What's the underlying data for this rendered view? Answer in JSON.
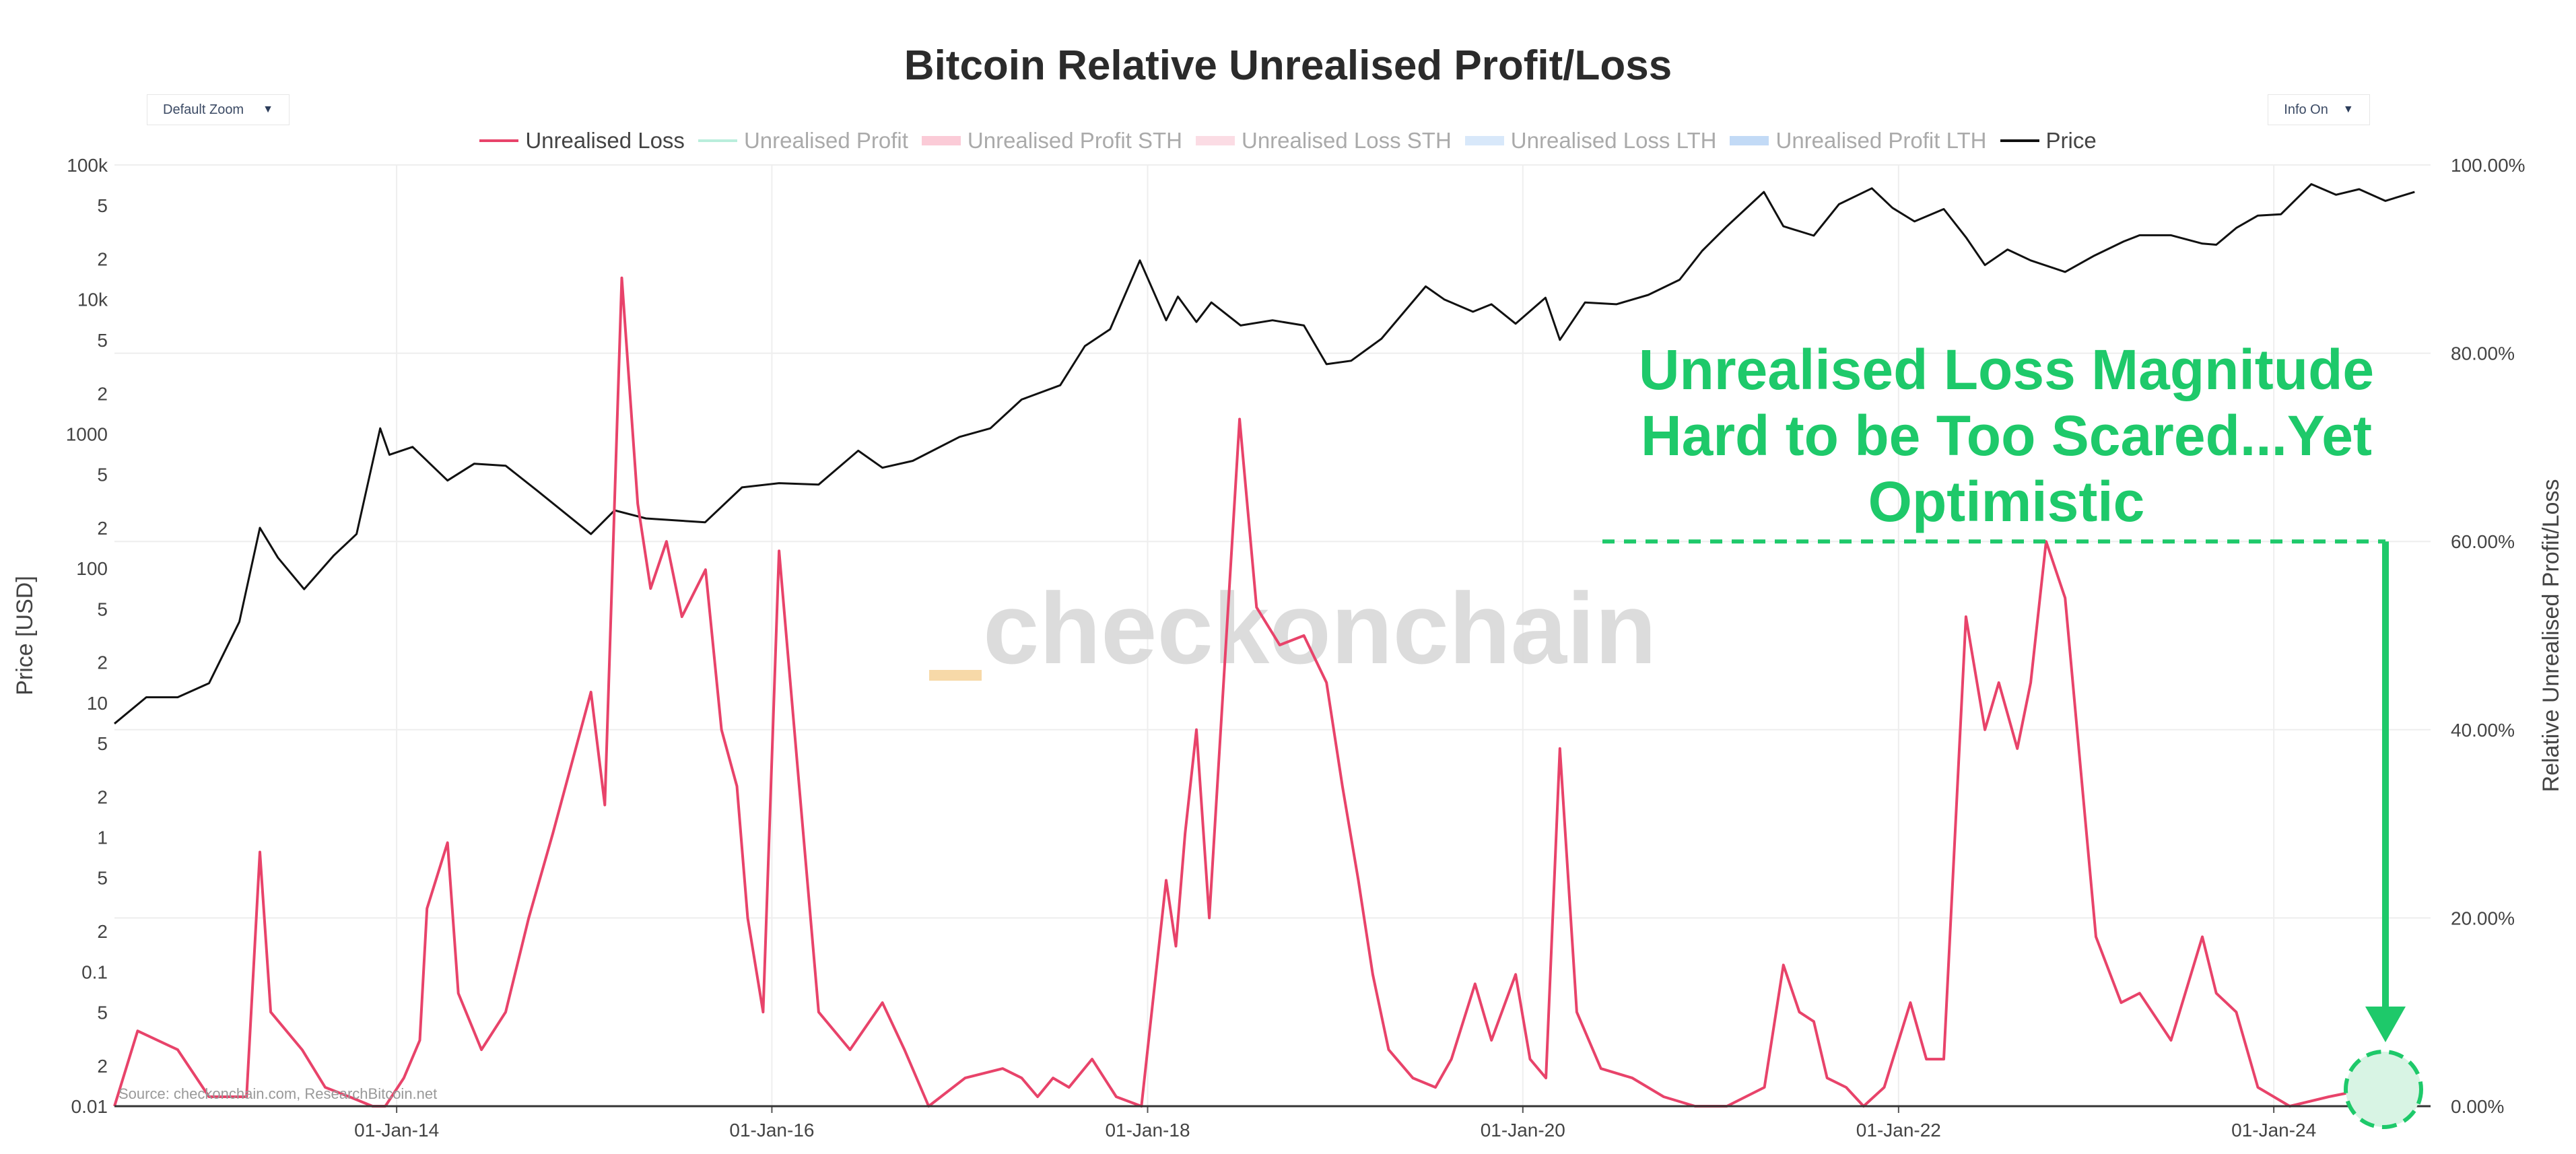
{
  "chart_data": {
    "type": "line",
    "title": "Bitcoin Relative Unrealised Profit/Loss",
    "ylabel_left": "Price [USD]",
    "ylabel_right": "Relative Unrealised Profit/Loss",
    "yscale_left": "log",
    "ylim_left": [
      0.01,
      100000
    ],
    "ylim_right": [
      0,
      1
    ],
    "left_ticks": [
      "100k",
      "5",
      "2",
      "10k",
      "5",
      "2",
      "1000",
      "5",
      "2",
      "100",
      "5",
      "2",
      "10",
      "5",
      "2",
      "1",
      "5",
      "2",
      "0.1",
      "5",
      "2",
      "0.01"
    ],
    "right_ticks": [
      "100.00%",
      "80.00%",
      "60.00%",
      "40.00%",
      "20.00%",
      "0.00%"
    ],
    "x_ticks": [
      "01-Jan-14",
      "01-Jan-16",
      "01-Jan-18",
      "01-Jan-20",
      "01-Jan-22",
      "01-Jan-24"
    ],
    "grid": true,
    "legend_position": "top-center",
    "series": [
      {
        "name": "Unrealised Loss",
        "axis": "right",
        "color": "#e8436a",
        "visible": true,
        "x": [
          "2012-07-01",
          "2012-08-15",
          "2012-11-01",
          "2013-01-01",
          "2013-03-15",
          "2013-04-10",
          "2013-05-01",
          "2013-07-01",
          "2013-08-15",
          "2013-10-01",
          "2013-11-15",
          "2013-12-10",
          "2014-01-15",
          "2014-02-15",
          "2014-03-01",
          "2014-04-10",
          "2014-05-01",
          "2014-06-15",
          "2014-08-01",
          "2014-09-15",
          "2014-11-01",
          "2015-01-14",
          "2015-02-10",
          "2015-03-15",
          "2015-04-15",
          "2015-05-10",
          "2015-06-10",
          "2015-07-10",
          "2015-08-25",
          "2015-09-25",
          "2015-10-25",
          "2015-11-15",
          "2015-12-15",
          "2016-01-15",
          "2016-02-20",
          "2016-04-01",
          "2016-06-01",
          "2016-08-03",
          "2016-09-15",
          "2016-11-01",
          "2017-01-11",
          "2017-03-25",
          "2017-05-01",
          "2017-06-01",
          "2017-07-01",
          "2017-08-01",
          "2017-09-15",
          "2017-11-01",
          "2017-12-20",
          "2018-02-06",
          "2018-02-25",
          "2018-03-15",
          "2018-04-06",
          "2018-05-01",
          "2018-06-29",
          "2018-08-01",
          "2018-09-15",
          "2018-11-01",
          "2018-12-15",
          "2019-01-15",
          "2019-02-15",
          "2019-03-15",
          "2019-04-15",
          "2019-06-01",
          "2019-07-15",
          "2019-08-15",
          "2019-09-30",
          "2019-11-01",
          "2019-12-18",
          "2020-01-15",
          "2020-02-15",
          "2020-03-13",
          "2020-04-15",
          "2020-06-01",
          "2020-08-01",
          "2020-10-01",
          "2020-12-01",
          "2021-02-01",
          "2021-04-15",
          "2021-05-22",
          "2021-06-22",
          "2021-07-20",
          "2021-08-15",
          "2021-09-21",
          "2021-10-25",
          "2021-12-04",
          "2022-01-24",
          "2022-02-24",
          "2022-03-30",
          "2022-05-12",
          "2022-06-18",
          "2022-07-15",
          "2022-08-20",
          "2022-09-15",
          "2022-10-15",
          "2022-11-21",
          "2022-12-31",
          "2023-01-20",
          "2023-03-10",
          "2023-04-15",
          "2023-06-15",
          "2023-08-15",
          "2023-09-11",
          "2023-10-20",
          "2023-12-01",
          "2024-02-01",
          "2024-04-17",
          "2024-06-01",
          "2024-07-05",
          "2024-08-05",
          "2024-09-06",
          "2024-10-01"
        ],
        "y": [
          0.0,
          0.08,
          0.06,
          0.01,
          0.01,
          0.27,
          0.1,
          0.06,
          0.02,
          0.01,
          0.0,
          0.0,
          0.03,
          0.07,
          0.21,
          0.28,
          0.12,
          0.06,
          0.1,
          0.2,
          0.29,
          0.44,
          0.32,
          0.88,
          0.64,
          0.55,
          0.6,
          0.52,
          0.57,
          0.4,
          0.34,
          0.2,
          0.1,
          0.59,
          0.36,
          0.1,
          0.06,
          0.11,
          0.06,
          0.0,
          0.03,
          0.04,
          0.03,
          0.01,
          0.03,
          0.02,
          0.05,
          0.01,
          0.0,
          0.24,
          0.17,
          0.29,
          0.4,
          0.2,
          0.73,
          0.53,
          0.49,
          0.5,
          0.45,
          0.34,
          0.24,
          0.14,
          0.06,
          0.03,
          0.02,
          0.05,
          0.13,
          0.07,
          0.14,
          0.05,
          0.03,
          0.38,
          0.1,
          0.04,
          0.03,
          0.01,
          0.0,
          0.0,
          0.02,
          0.15,
          0.1,
          0.09,
          0.03,
          0.02,
          0.0,
          0.02,
          0.11,
          0.05,
          0.05,
          0.52,
          0.4,
          0.45,
          0.38,
          0.45,
          0.6,
          0.54,
          0.3,
          0.18,
          0.11,
          0.12,
          0.07,
          0.18,
          0.12,
          0.1,
          0.02,
          0.0,
          0.01,
          0.015,
          0.0,
          0.02,
          0.01,
          0.0
        ]
      },
      {
        "name": "Unrealised Profit",
        "axis": "right",
        "color": "#7fe0bf",
        "visible": false
      },
      {
        "name": "Unrealised Profit STH",
        "axis": "right",
        "color": "#f7a1b7",
        "visible": false
      },
      {
        "name": "Unrealised Loss STH",
        "axis": "right",
        "color": "#f8bfcd",
        "visible": false
      },
      {
        "name": "Unrealised Loss LTH",
        "axis": "right",
        "color": "#b8d6f5",
        "visible": false
      },
      {
        "name": "Unrealised Profit LTH",
        "axis": "right",
        "color": "#8fbcee",
        "visible": false
      },
      {
        "name": "Price",
        "axis": "left",
        "color": "#111111",
        "visible": true,
        "x": [
          "2012-07-01",
          "2012-09-01",
          "2012-11-01",
          "2013-01-01",
          "2013-03-01",
          "2013-04-10",
          "2013-05-15",
          "2013-07-05",
          "2013-09-01",
          "2013-10-15",
          "2013-11-30",
          "2013-12-18",
          "2014-02-01",
          "2014-04-10",
          "2014-06-01",
          "2014-08-01",
          "2014-10-01",
          "2015-01-14",
          "2015-03-01",
          "2015-05-01",
          "2015-08-24",
          "2015-11-04",
          "2016-01-15",
          "2016-04-01",
          "2016-06-17",
          "2016-08-03",
          "2016-10-01",
          "2016-12-31",
          "2017-03-01",
          "2017-05-01",
          "2017-07-15",
          "2017-09-01",
          "2017-10-20",
          "2017-12-17",
          "2018-02-06",
          "2018-03-01",
          "2018-04-06",
          "2018-05-05",
          "2018-07-01",
          "2018-09-01",
          "2018-11-01",
          "2018-12-15",
          "2019-02-01",
          "2019-04-01",
          "2019-06-26",
          "2019-08-01",
          "2019-09-26",
          "2019-11-01",
          "2019-12-18",
          "2020-02-14",
          "2020-03-13",
          "2020-05-01",
          "2020-07-01",
          "2020-09-01",
          "2020-11-01",
          "2020-12-15",
          "2021-02-01",
          "2021-04-14",
          "2021-05-22",
          "2021-07-20",
          "2021-09-07",
          "2021-11-10",
          "2021-12-20",
          "2022-02-01",
          "2022-03-30",
          "2022-05-12",
          "2022-06-18",
          "2022-08-01",
          "2022-09-15",
          "2022-11-21",
          "2023-01-15",
          "2023-03-15",
          "2023-04-15",
          "2023-06-15",
          "2023-08-15",
          "2023-09-11",
          "2023-10-20",
          "2023-12-01",
          "2024-01-15",
          "2024-03-14",
          "2024-05-01",
          "2024-06-15",
          "2024-08-05",
          "2024-10-01"
        ],
        "y": [
          7,
          11,
          11,
          14,
          40,
          200,
          120,
          70,
          125,
          180,
          1100,
          700,
          800,
          450,
          600,
          580,
          380,
          180,
          270,
          235,
          220,
          400,
          430,
          420,
          750,
          560,
          630,
          950,
          1100,
          1800,
          2300,
          4500,
          6000,
          19500,
          7000,
          10500,
          6800,
          9500,
          6400,
          7000,
          6400,
          3300,
          3500,
          5100,
          12500,
          10000,
          8100,
          9200,
          6600,
          10300,
          5000,
          9500,
          9200,
          10800,
          14000,
          23000,
          35000,
          63000,
          35000,
          29800,
          51000,
          67000,
          48000,
          38000,
          47000,
          29000,
          18000,
          23500,
          19500,
          16000,
          21000,
          27000,
          30000,
          30000,
          26000,
          25500,
          34000,
          42000,
          43000,
          72000,
          60000,
          66000,
          54000,
          63000
        ]
      }
    ],
    "annotation": {
      "lines": [
        "Unrealised Loss Magnitude",
        "Hard to be Too Scared...Yet",
        "Optimistic"
      ],
      "color": "#1ec96a",
      "reference_level": 0.6
    },
    "watermark": "_checkonchain",
    "source": "Source: checkonchain.com, ResearchBitcoin.net"
  },
  "controls": {
    "zoom_label": "Default Zoom",
    "info_label": "Info On",
    "caret": "▼"
  }
}
